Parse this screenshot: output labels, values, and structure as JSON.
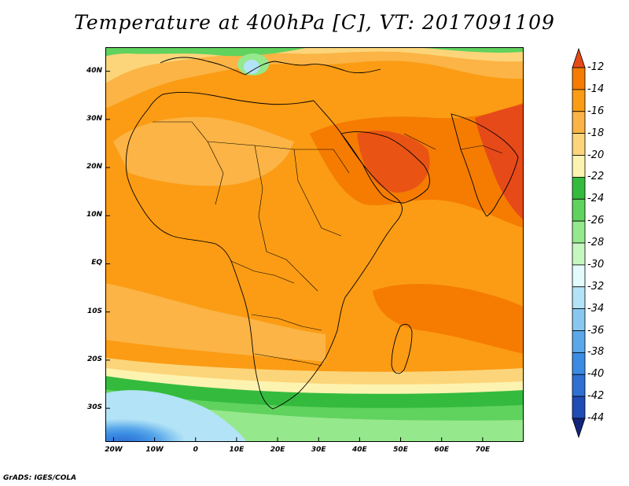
{
  "title": "Temperature at 400hPa [C], VT: 2017091109",
  "credit": "GrADS: IGES/COLA",
  "map": {
    "lon_range": [
      -22,
      80
    ],
    "lat_range": [
      -37,
      45
    ],
    "y_ticks": [
      {
        "label": "40N",
        "lat": 40
      },
      {
        "label": "30N",
        "lat": 30
      },
      {
        "label": "20N",
        "lat": 20
      },
      {
        "label": "10N",
        "lat": 10
      },
      {
        "label": "EQ",
        "lat": 0
      },
      {
        "label": "10S",
        "lat": -10
      },
      {
        "label": "20S",
        "lat": -20
      },
      {
        "label": "30S",
        "lat": -30
      }
    ],
    "x_ticks": [
      {
        "label": "20W",
        "lon": -20
      },
      {
        "label": "10W",
        "lon": -10
      },
      {
        "label": "0",
        "lon": 0
      },
      {
        "label": "10E",
        "lon": 10
      },
      {
        "label": "20E",
        "lon": 20
      },
      {
        "label": "30E",
        "lon": 30
      },
      {
        "label": "40E",
        "lon": 40
      },
      {
        "label": "50E",
        "lon": 50
      },
      {
        "label": "60E",
        "lon": 60
      },
      {
        "label": "70E",
        "lon": 70
      }
    ]
  },
  "colorbar": {
    "levels": [
      "-12",
      "-14",
      "-16",
      "-18",
      "-20",
      "-22",
      "-24",
      "-26",
      "-28",
      "-30",
      "-32",
      "-34",
      "-36",
      "-38",
      "-40",
      "-42",
      "-44"
    ],
    "colors": [
      "#e64a19",
      "#f57c00",
      "#fb9c14",
      "#fbb445",
      "#fcd57a",
      "#fdf3b0",
      "#34bb3e",
      "#60d25e",
      "#96e88c",
      "#c7f7c0",
      "#e4fbfd",
      "#b3e3f7",
      "#88c8f0",
      "#5aa8ea",
      "#3b8be3",
      "#2f6fd2",
      "#1f4cb6",
      "#12247a"
    ]
  }
}
